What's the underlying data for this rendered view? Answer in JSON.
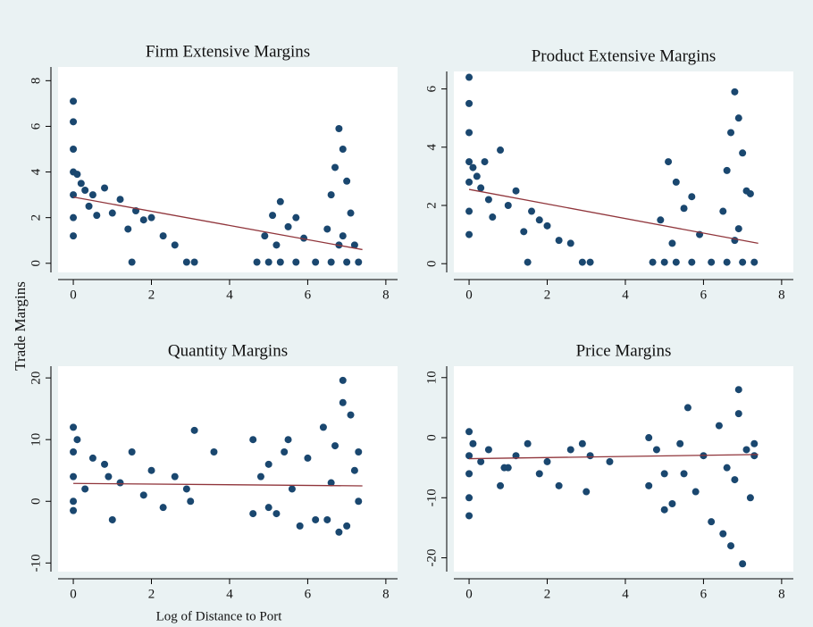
{
  "chart_data": [
    {
      "type": "scatter",
      "title": "Firm Extensive Margins",
      "ylabel": "Trade Margins",
      "xlim": [
        -0.39,
        8.3
      ],
      "ylim": [
        -0.4,
        8.6
      ],
      "xticks": [
        0,
        2,
        4,
        6,
        8
      ],
      "yticks": [
        0,
        2,
        4,
        6,
        8
      ],
      "series": [
        {
          "color": "#1a476f",
          "x": [
            0,
            0,
            0,
            0,
            0,
            0,
            0,
            0.1,
            0.2,
            0.3,
            0.4,
            0.5,
            0.6,
            0.8,
            1.0,
            1.2,
            1.4,
            1.6,
            1.8,
            2.0,
            2.3,
            2.6,
            1.5,
            2.9,
            3.1,
            4.7,
            5.0,
            5.3,
            5.7,
            6.2,
            6.6,
            7.0,
            7.3,
            4.9,
            5.1,
            5.3,
            5.5,
            5.7,
            5.9,
            5.2,
            6.5,
            6.6,
            6.7,
            6.8,
            6.9,
            7.0,
            7.1,
            6.8,
            6.9,
            7.2
          ],
          "y": [
            7.1,
            6.2,
            5.0,
            4.0,
            3.0,
            2.0,
            1.2,
            3.9,
            3.5,
            3.2,
            2.5,
            3.0,
            2.1,
            3.3,
            2.2,
            2.8,
            1.5,
            2.3,
            1.9,
            2.0,
            1.2,
            0.8,
            0.05,
            0.05,
            0.05,
            0.05,
            0.05,
            0.05,
            0.05,
            0.05,
            0.05,
            0.05,
            0.05,
            1.2,
            2.1,
            2.7,
            1.6,
            2.0,
            1.1,
            0.8,
            1.5,
            3.0,
            4.2,
            5.9,
            5.0,
            3.6,
            2.2,
            0.8,
            1.2,
            0.8
          ]
        }
      ],
      "fit": {
        "color": "#90353b",
        "x": [
          0,
          7.4
        ],
        "y": [
          2.9,
          0.6
        ]
      }
    },
    {
      "type": "scatter",
      "title": "Product Extensive Margins",
      "xlim": [
        -0.39,
        8.3
      ],
      "ylim": [
        -0.3,
        6.6
      ],
      "xticks": [
        0,
        2,
        4,
        6,
        8
      ],
      "yticks": [
        0,
        2,
        4,
        6
      ],
      "series": [
        {
          "color": "#1a476f",
          "x": [
            0,
            0,
            0,
            0,
            0,
            0,
            0,
            0.1,
            0.2,
            0.3,
            0.4,
            0.5,
            0.6,
            0.8,
            1.0,
            1.2,
            1.4,
            1.6,
            1.8,
            2.0,
            2.3,
            2.6,
            1.5,
            2.9,
            3.1,
            4.7,
            5.0,
            5.3,
            5.7,
            6.2,
            6.6,
            7.0,
            7.3,
            4.9,
            5.1,
            5.3,
            5.5,
            5.7,
            5.9,
            5.2,
            6.5,
            6.6,
            6.7,
            6.8,
            6.9,
            7.0,
            7.1,
            6.8,
            6.9,
            7.2
          ],
          "y": [
            6.4,
            5.5,
            4.5,
            3.5,
            2.8,
            1.8,
            1.0,
            3.3,
            3.0,
            2.6,
            3.5,
            2.2,
            1.6,
            3.9,
            2.0,
            2.5,
            1.1,
            1.8,
            1.5,
            1.3,
            0.8,
            0.7,
            0.05,
            0.05,
            0.05,
            0.05,
            0.05,
            0.05,
            0.05,
            0.05,
            0.05,
            0.05,
            0.05,
            1.5,
            3.5,
            2.8,
            1.9,
            2.3,
            1.0,
            0.7,
            1.8,
            3.2,
            4.5,
            5.9,
            5.0,
            3.8,
            2.5,
            0.8,
            1.2,
            2.4
          ]
        }
      ],
      "fit": {
        "color": "#90353b",
        "x": [
          0,
          7.4
        ],
        "y": [
          2.55,
          0.7
        ]
      }
    },
    {
      "type": "scatter",
      "title": "Quantity Margins",
      "xlabel": "Log of Distance to Port",
      "xlim": [
        -0.39,
        8.3
      ],
      "ylim": [
        -11.4,
        21.9
      ],
      "xticks": [
        0,
        2,
        4,
        6,
        8
      ],
      "yticks": [
        -10,
        0,
        10,
        20
      ],
      "series": [
        {
          "color": "#1a476f",
          "x": [
            0,
            0,
            0,
            0,
            0,
            0.1,
            0.3,
            0.5,
            0.8,
            1.0,
            1.2,
            1.5,
            1.8,
            2.0,
            2.3,
            2.6,
            2.9,
            3.1,
            3.0,
            3.6,
            0.9,
            4.6,
            4.6,
            4.8,
            5.0,
            5.2,
            5.4,
            5.6,
            5.8,
            6.0,
            6.2,
            6.4,
            6.6,
            6.7,
            6.8,
            6.9,
            7.0,
            7.1,
            7.2,
            7.3,
            6.9,
            6.5,
            5.5,
            5.0,
            7.3
          ],
          "y": [
            12,
            8,
            4,
            0,
            -1.5,
            10,
            2,
            7,
            6,
            -3,
            3,
            8,
            1,
            5,
            -1,
            4,
            2,
            11.5,
            0,
            8,
            4,
            10,
            -2,
            4,
            6,
            -2,
            8,
            2,
            -4,
            7,
            -3,
            12,
            3,
            9,
            -5,
            19.6,
            -4,
            14,
            5,
            0,
            16,
            -3,
            10,
            -1,
            8
          ]
        }
      ],
      "fit": {
        "color": "#90353b",
        "x": [
          0,
          7.4
        ],
        "y": [
          2.9,
          2.5
        ]
      }
    },
    {
      "type": "scatter",
      "title": "Price Margins",
      "xlim": [
        -0.39,
        8.3
      ],
      "ylim": [
        -22.3,
        11.9
      ],
      "xticks": [
        0,
        2,
        4,
        6,
        8
      ],
      "yticks": [
        -20,
        -10,
        0,
        10
      ],
      "series": [
        {
          "color": "#1a476f",
          "x": [
            0,
            0,
            0,
            0,
            0,
            0.1,
            0.3,
            0.5,
            0.8,
            1.0,
            1.2,
            1.5,
            1.8,
            2.0,
            2.3,
            2.6,
            2.9,
            3.1,
            3.0,
            3.6,
            0.9,
            4.6,
            4.6,
            4.8,
            5.0,
            5.2,
            5.4,
            5.6,
            5.8,
            6.0,
            6.2,
            6.4,
            6.6,
            6.7,
            6.8,
            6.9,
            7.0,
            7.1,
            7.2,
            7.3,
            6.9,
            6.5,
            5.5,
            5.0,
            7.3
          ],
          "y": [
            1,
            -3,
            -6,
            -10,
            -13,
            -1,
            -4,
            -2,
            -8,
            -5,
            -3,
            -1,
            -6,
            -4,
            -8,
            -2,
            -1,
            -3,
            -9,
            -4,
            -5,
            0,
            -8,
            -2,
            -6,
            -11,
            -1,
            5,
            -9,
            -3,
            -14,
            2,
            -5,
            -18,
            -7,
            8,
            -21,
            -2,
            -10,
            -1,
            4,
            -16,
            -6,
            -12,
            -3
          ]
        }
      ],
      "fit": {
        "color": "#90353b",
        "x": [
          0,
          7.4
        ],
        "y": [
          -3.5,
          -2.8
        ]
      }
    }
  ]
}
